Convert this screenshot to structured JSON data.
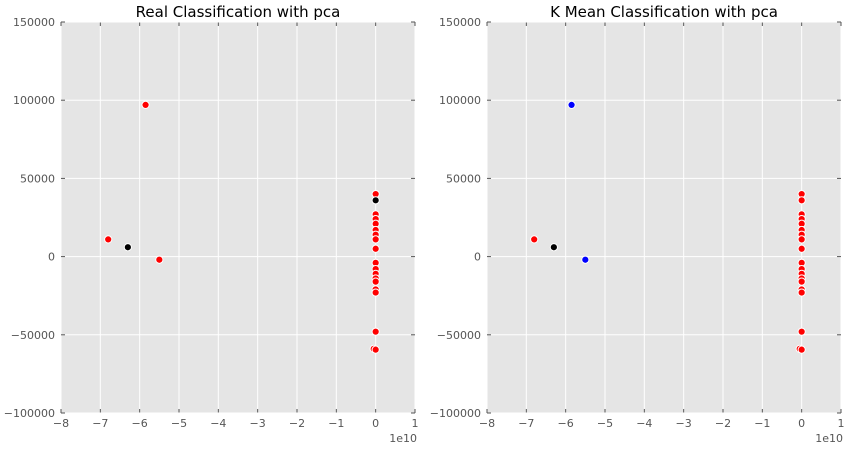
{
  "chart_data": [
    {
      "type": "scatter",
      "title": "Real Classification with pca",
      "xlabel": "",
      "ylabel": "",
      "xlim": [
        -8,
        1
      ],
      "ylim": [
        -100000,
        150000
      ],
      "x_ticks": [
        "−8",
        "−7",
        "−6",
        "−5",
        "−4",
        "−3",
        "−2",
        "−1",
        "0",
        "1"
      ],
      "y_ticks": [
        "−100000",
        "−50000",
        "0",
        "50000",
        "100000",
        "150000"
      ],
      "x_offset_label": "1e10",
      "grid": true,
      "point_colors": {
        "red": "#ff0000",
        "black": "#000000",
        "blue": "#0000ff"
      },
      "points": [
        {
          "x": -6.8,
          "y": 11000,
          "color": "red"
        },
        {
          "x": -5.85,
          "y": 97000,
          "color": "red"
        },
        {
          "x": -6.3,
          "y": 6000,
          "color": "black"
        },
        {
          "x": -5.5,
          "y": -2000,
          "color": "red"
        },
        {
          "x": 0,
          "y": 40000,
          "color": "red"
        },
        {
          "x": 0,
          "y": 36000,
          "color": "black"
        },
        {
          "x": 0,
          "y": 27000,
          "color": "red"
        },
        {
          "x": 0,
          "y": 24000,
          "color": "red"
        },
        {
          "x": 0,
          "y": 21000,
          "color": "red"
        },
        {
          "x": 0,
          "y": 17000,
          "color": "red"
        },
        {
          "x": 0,
          "y": 14000,
          "color": "red"
        },
        {
          "x": 0,
          "y": 11000,
          "color": "red"
        },
        {
          "x": 0,
          "y": 5000,
          "color": "red"
        },
        {
          "x": 0,
          "y": -4000,
          "color": "red"
        },
        {
          "x": 0,
          "y": -8000,
          "color": "red"
        },
        {
          "x": 0,
          "y": -11000,
          "color": "red"
        },
        {
          "x": 0,
          "y": -14000,
          "color": "red"
        },
        {
          "x": 0,
          "y": -16000,
          "color": "red"
        },
        {
          "x": 0,
          "y": -21000,
          "color": "red"
        },
        {
          "x": 0,
          "y": -23000,
          "color": "red"
        },
        {
          "x": 0,
          "y": -48000,
          "color": "red"
        },
        {
          "x": -0.05,
          "y": -59000,
          "color": "red"
        },
        {
          "x": 0,
          "y": -59500,
          "color": "red"
        }
      ]
    },
    {
      "type": "scatter",
      "title": "K Mean Classification with pca",
      "xlabel": "",
      "ylabel": "",
      "xlim": [
        -8,
        1
      ],
      "ylim": [
        -100000,
        150000
      ],
      "x_ticks": [
        "−8",
        "−7",
        "−6",
        "−5",
        "−4",
        "−3",
        "−2",
        "−1",
        "0",
        "1"
      ],
      "y_ticks": [
        "−100000",
        "−50000",
        "0",
        "50000",
        "100000",
        "150000"
      ],
      "x_offset_label": "1e10",
      "grid": true,
      "point_colors": {
        "red": "#ff0000",
        "black": "#000000",
        "blue": "#0000ff"
      },
      "points": [
        {
          "x": -6.8,
          "y": 11000,
          "color": "red"
        },
        {
          "x": -5.85,
          "y": 97000,
          "color": "blue"
        },
        {
          "x": -6.3,
          "y": 6000,
          "color": "black"
        },
        {
          "x": -5.5,
          "y": -2000,
          "color": "blue"
        },
        {
          "x": 0,
          "y": 40000,
          "color": "red"
        },
        {
          "x": 0,
          "y": 36000,
          "color": "red"
        },
        {
          "x": 0,
          "y": 27000,
          "color": "red"
        },
        {
          "x": 0,
          "y": 24000,
          "color": "red"
        },
        {
          "x": 0,
          "y": 21000,
          "color": "red"
        },
        {
          "x": 0,
          "y": 17000,
          "color": "red"
        },
        {
          "x": 0,
          "y": 14000,
          "color": "red"
        },
        {
          "x": 0,
          "y": 11000,
          "color": "red"
        },
        {
          "x": 0,
          "y": 5000,
          "color": "red"
        },
        {
          "x": 0,
          "y": -4000,
          "color": "red"
        },
        {
          "x": 0,
          "y": -8000,
          "color": "red"
        },
        {
          "x": 0,
          "y": -11000,
          "color": "red"
        },
        {
          "x": 0,
          "y": -14000,
          "color": "red"
        },
        {
          "x": 0,
          "y": -16000,
          "color": "red"
        },
        {
          "x": 0,
          "y": -21000,
          "color": "red"
        },
        {
          "x": 0,
          "y": -23000,
          "color": "red"
        },
        {
          "x": 0,
          "y": -48000,
          "color": "red"
        },
        {
          "x": -0.05,
          "y": -59000,
          "color": "red"
        },
        {
          "x": 0,
          "y": -59500,
          "color": "red"
        }
      ]
    }
  ]
}
